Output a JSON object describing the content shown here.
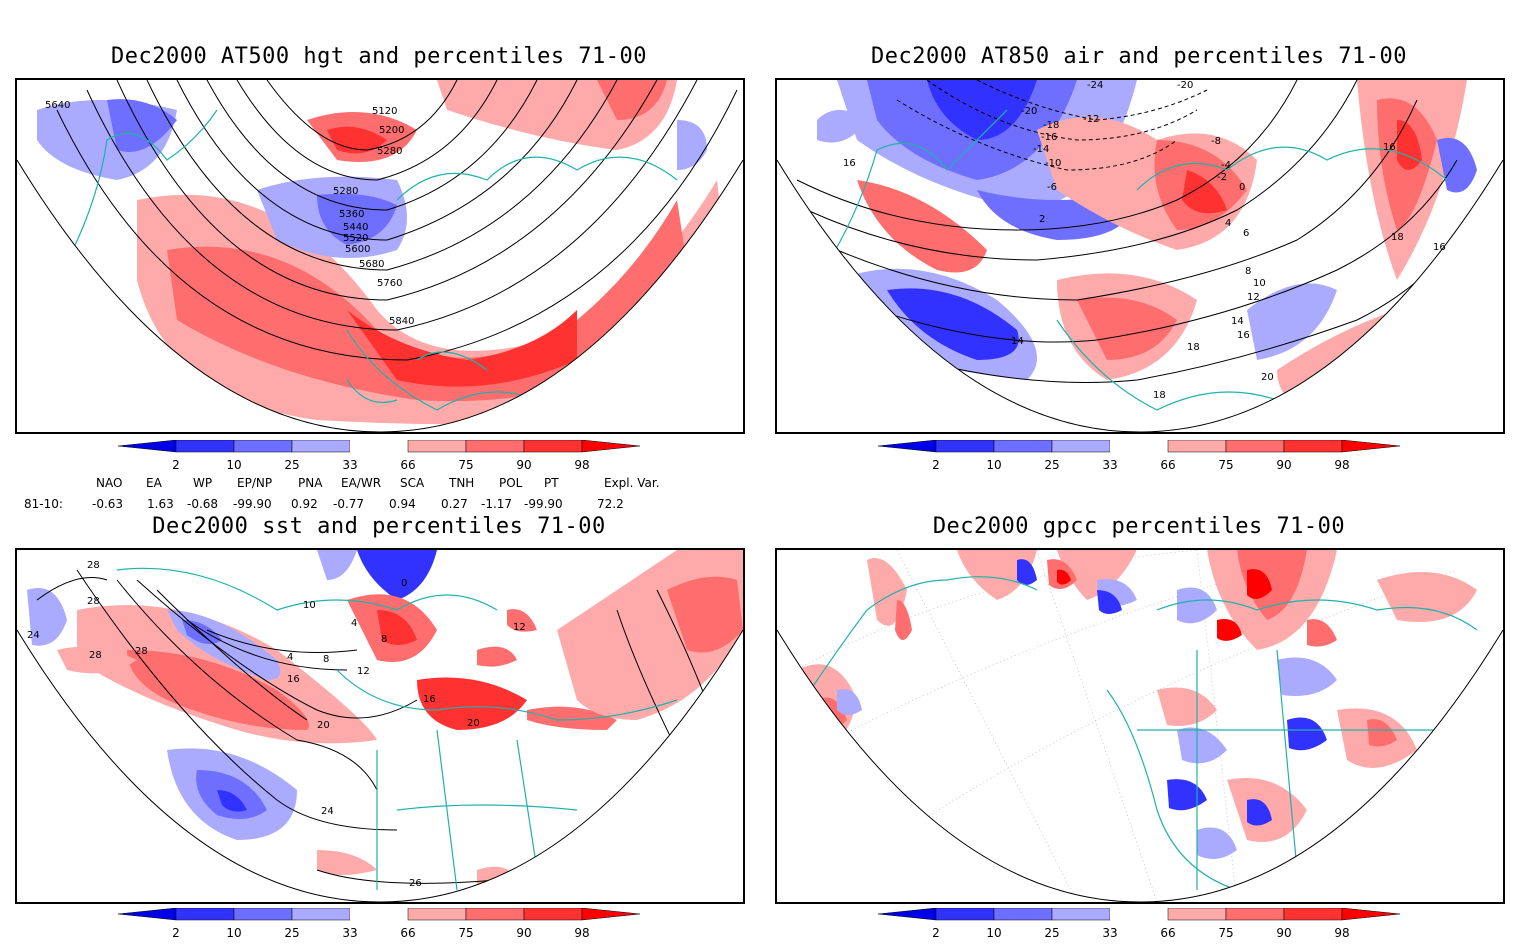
{
  "panels": {
    "hgt": {
      "title": "Dec2000 AT500 hgt and percentiles 71-00",
      "labels": [
        "5640",
        "5120",
        "5200",
        "5280",
        "5280",
        "5360",
        "5440",
        "5520",
        "5600",
        "5680",
        "5760",
        "5840"
      ]
    },
    "air": {
      "title": "Dec2000 AT850 air and percentiles 71-00",
      "labels": [
        "-24",
        "-20",
        "-20",
        "-18",
        "-16",
        "-14",
        "-12",
        "-10",
        "-8",
        "-6",
        "-4",
        "-2",
        "0",
        "2",
        "4",
        "6",
        "8",
        "10",
        "12",
        "14",
        "16",
        "18",
        "20",
        "14",
        "16",
        "16",
        "18",
        "18",
        "16"
      ]
    },
    "sst": {
      "title": "Dec2000 sst and percentiles 71-00",
      "labels": [
        "28",
        "28",
        "24",
        "28",
        "28",
        "10",
        "4",
        "8",
        "12",
        "16",
        "20",
        "24",
        "26",
        "16",
        "20",
        "0",
        "4",
        "8",
        "12"
      ]
    },
    "gpcc": {
      "title": "Dec2000 gpcc percentiles 71-00",
      "labels": []
    }
  },
  "colorbar": {
    "ticks": [
      "2",
      "10",
      "25",
      "33",
      "66",
      "75",
      "90",
      "98"
    ],
    "colors": [
      "#0000e6",
      "#3232ff",
      "#6e6eff",
      "#aaaaff",
      "#ffaaaa",
      "#ff6e6e",
      "#ff3232",
      "#ff0000"
    ]
  },
  "indices": {
    "header": [
      "NAO",
      "EA",
      "WP",
      "EP/NP",
      "PNA",
      "EA/WR",
      "SCA",
      "TNH",
      "POL",
      "PT",
      "Expl. Var."
    ],
    "row_label": "81-10:",
    "values": [
      "-0.63",
      "1.63",
      "-0.68",
      "-99.90",
      "0.92",
      "-0.77",
      "0.94",
      "0.27",
      "-1.17",
      "-99.90",
      "72.2"
    ]
  }
}
